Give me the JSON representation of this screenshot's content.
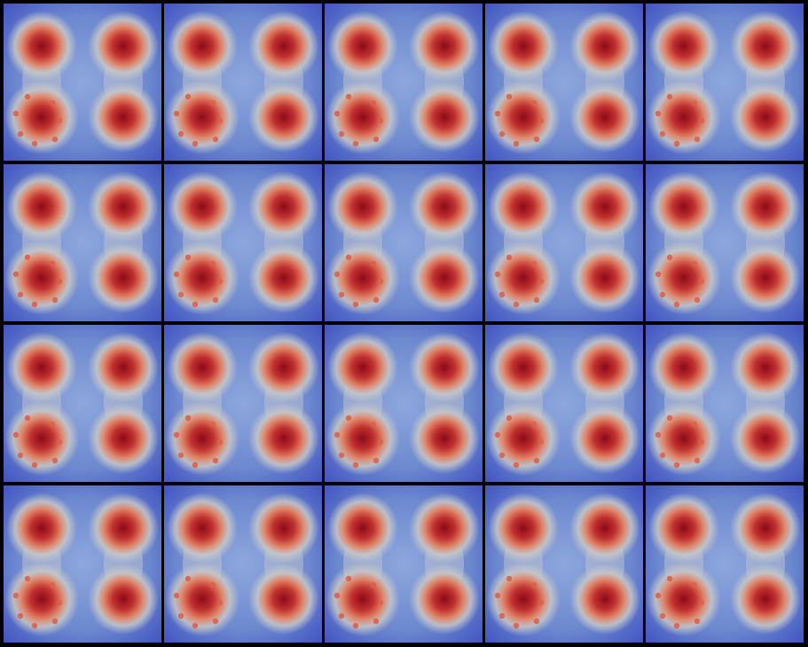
{
  "figure": {
    "rows": 4,
    "columns": 5,
    "panel_count": 20,
    "background_color": "#000000",
    "colormap": {
      "low": "#3b4cc0",
      "mid": "#c8c8c8",
      "high": "#8b0a1a"
    },
    "main_blobs_per_panel": 4,
    "satellite_spots_per_panel": 7
  }
}
